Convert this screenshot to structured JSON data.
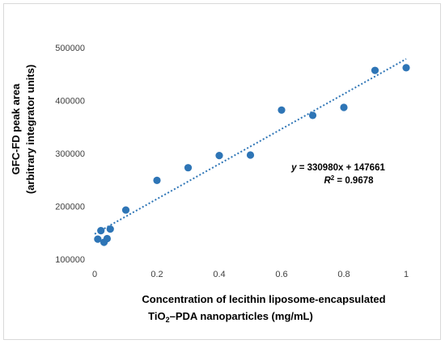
{
  "chart_data": {
    "type": "scatter",
    "title": "",
    "xlabel_line1": "Concentration of lecithin liposome-encapsulated",
    "xlabel_line2_pre": "TiO",
    "xlabel_line2_sub": "2",
    "xlabel_line2_post": "–PDA nanoparticles  (mg/mL)",
    "ylabel_line1": "GFC-FD peak area",
    "ylabel_line2": "(arbitrary integrator units)",
    "xlim": [
      0,
      1
    ],
    "ylim": [
      100000,
      500000
    ],
    "x_ticks": [
      "0",
      "0.2",
      "0.4",
      "0.6",
      "0.8",
      "1"
    ],
    "y_ticks": [
      "100000",
      "200000",
      "300000",
      "400000",
      "500000"
    ],
    "grid": false,
    "marker_color": "#2e75b6",
    "trendline_color": "#2e75b6",
    "series": [
      {
        "x": [
          0.01,
          0.02,
          0.03,
          0.04,
          0.05,
          0.1,
          0.2,
          0.3,
          0.4,
          0.5,
          0.6,
          0.7,
          0.8,
          0.9,
          1.0
        ],
        "y": [
          138000,
          154000,
          132000,
          139000,
          157000,
          193000,
          249000,
          273000,
          296000,
          297000,
          382000,
          372000,
          387000,
          457000,
          462000
        ]
      }
    ],
    "trendline": {
      "slope": 330980,
      "intercept": 147661,
      "x_range": [
        0,
        1
      ]
    },
    "equation_text": "y = 330980x + 147661",
    "r2_value": " = 0.9678"
  }
}
